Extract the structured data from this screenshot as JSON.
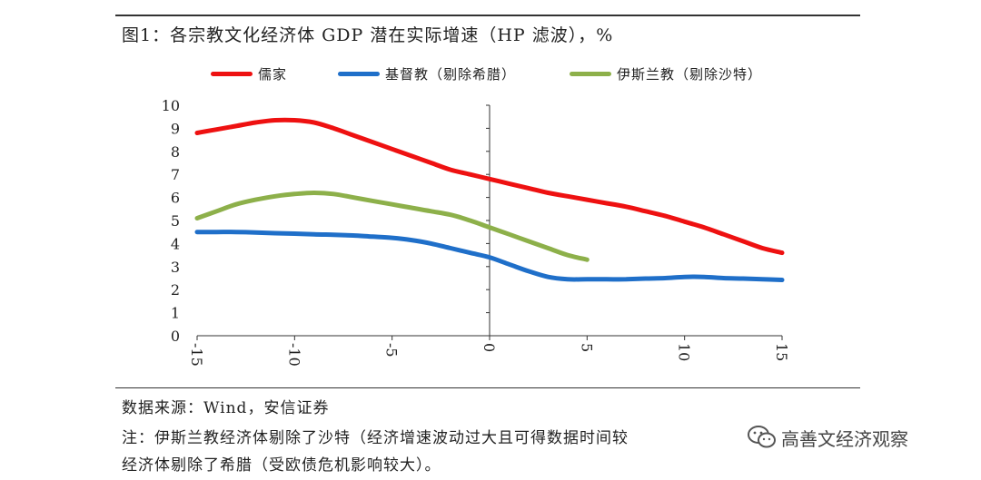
{
  "chart_title": "图1：各宗教文化经济体 GDP 潜在实际增速（HP 滤波），%",
  "legend": [
    {
      "label": "儒家",
      "color": "#ee1111"
    },
    {
      "label": "基督教（剔除希腊）",
      "color": "#1f6fc9"
    },
    {
      "label": "伊斯兰教（剔除沙特）",
      "color": "#8db04a"
    }
  ],
  "source_text": "数据来源：Wind，安信证券",
  "note_line1": "注：伊斯兰教经济体剔除了沙特（经济增速波动过大且可得数据时间较",
  "note_line2": "经济体剔除了希腊（受欧债危机影响较大）。",
  "watermark_text": "高善文经济观察",
  "chart_data": {
    "type": "line",
    "title": "图1：各宗教文化经济体 GDP 潜在实际增速（HP 滤波），%",
    "xlabel": "",
    "ylabel": "",
    "xlim": [
      -15,
      15
    ],
    "ylim": [
      0,
      10
    ],
    "x_ticks": [
      -15,
      -10,
      -5,
      0,
      5,
      10,
      15
    ],
    "x_tick_labels": [
      "-15",
      "-10",
      "-5",
      "0",
      "5",
      "10",
      "15"
    ],
    "y_ticks": [
      0,
      1,
      2,
      3,
      4,
      5,
      6,
      7,
      8,
      9,
      10
    ],
    "y_tick_labels": [
      "0",
      "1",
      "2",
      "3",
      "4",
      "5",
      "6",
      "7",
      "8",
      "9",
      "10"
    ],
    "legend_position": "top",
    "grid": false,
    "series": [
      {
        "name": "儒家",
        "color": "#ee1111",
        "x": [
          -15,
          -14,
          -13,
          -12,
          -11,
          -10,
          -9,
          -8,
          -7,
          -6,
          -5,
          -4,
          -3,
          -2,
          -1,
          0,
          1,
          2,
          3,
          4,
          5,
          6,
          7,
          8,
          9,
          10,
          11,
          12,
          13,
          14,
          15
        ],
        "y": [
          8.8,
          8.95,
          9.1,
          9.25,
          9.35,
          9.35,
          9.25,
          9.0,
          8.7,
          8.4,
          8.1,
          7.8,
          7.5,
          7.2,
          7.0,
          6.8,
          6.6,
          6.4,
          6.2,
          6.05,
          5.9,
          5.75,
          5.6,
          5.4,
          5.2,
          4.95,
          4.7,
          4.4,
          4.1,
          3.8,
          3.6
        ]
      },
      {
        "name": "基督教（剔除希腊）",
        "color": "#1f6fc9",
        "x": [
          -15,
          -14,
          -13,
          -12,
          -11,
          -10,
          -9,
          -8,
          -7,
          -6,
          -5,
          -4,
          -3,
          -2,
          -1,
          0,
          1,
          2,
          3,
          4,
          5,
          6,
          7,
          8,
          9,
          10,
          11,
          12,
          13,
          14,
          15
        ],
        "y": [
          4.5,
          4.5,
          4.5,
          4.48,
          4.45,
          4.43,
          4.4,
          4.38,
          4.35,
          4.3,
          4.25,
          4.15,
          4.0,
          3.8,
          3.6,
          3.4,
          3.1,
          2.8,
          2.55,
          2.45,
          2.45,
          2.45,
          2.45,
          2.48,
          2.5,
          2.55,
          2.55,
          2.5,
          2.48,
          2.45,
          2.42
        ]
      },
      {
        "name": "伊斯兰教（剔除沙特）",
        "color": "#8db04a",
        "x": [
          -15,
          -14,
          -13,
          -12,
          -11,
          -10,
          -9,
          -8,
          -7,
          -6,
          -5,
          -4,
          -3,
          -2,
          -1,
          0,
          1,
          2,
          3,
          4,
          5
        ],
        "y": [
          5.1,
          5.4,
          5.7,
          5.9,
          6.05,
          6.15,
          6.2,
          6.15,
          6.0,
          5.85,
          5.7,
          5.55,
          5.4,
          5.25,
          5.0,
          4.7,
          4.4,
          4.1,
          3.8,
          3.5,
          3.3
        ]
      }
    ]
  }
}
